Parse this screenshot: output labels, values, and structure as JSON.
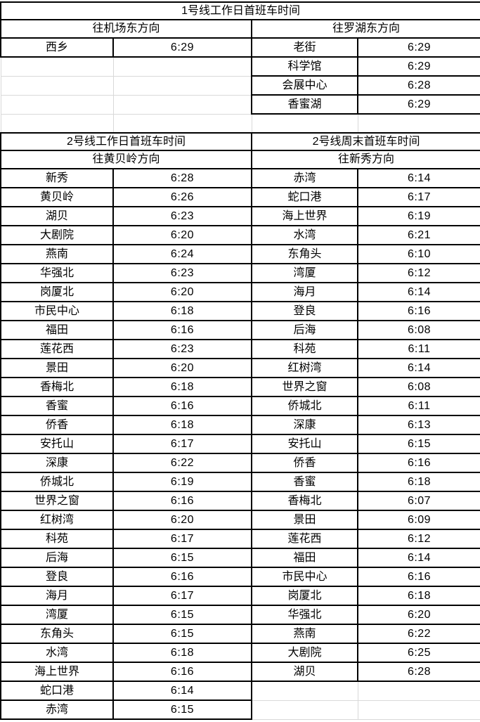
{
  "colors": {
    "background": "#ffffff",
    "table_border": "#000000",
    "gridline": "#d9d9d9",
    "text": "#000000"
  },
  "table1": {
    "title": "1号线工作日首班车时间",
    "left": {
      "direction": "往机场东方向",
      "rows": [
        {
          "station": "西乡",
          "time": "6:29"
        }
      ]
    },
    "right": {
      "direction": "往罗湖东方向",
      "rows": [
        {
          "station": "老街",
          "time": "6:29"
        },
        {
          "station": "科学馆",
          "time": "6:29"
        },
        {
          "station": "会展中心",
          "time": "6:28"
        },
        {
          "station": "香蜜湖",
          "time": "6:29"
        }
      ]
    }
  },
  "table2": {
    "left": {
      "title": "2号线工作日首班车时间",
      "direction": "往黄贝岭方向",
      "rows": [
        {
          "station": "新秀",
          "time": "6:28"
        },
        {
          "station": "黄贝岭",
          "time": "6:26"
        },
        {
          "station": "湖贝",
          "time": "6:23"
        },
        {
          "station": "大剧院",
          "time": "6:20"
        },
        {
          "station": "燕南",
          "time": "6:24"
        },
        {
          "station": "华强北",
          "time": "6:23"
        },
        {
          "station": "岗厦北",
          "time": "6:20"
        },
        {
          "station": "市民中心",
          "time": "6:18"
        },
        {
          "station": "福田",
          "time": "6:16"
        },
        {
          "station": "莲花西",
          "time": "6:23"
        },
        {
          "station": "景田",
          "time": "6:20"
        },
        {
          "station": "香梅北",
          "time": "6:18"
        },
        {
          "station": "香蜜",
          "time": "6:16"
        },
        {
          "station": "侨香",
          "time": "6:18"
        },
        {
          "station": "安托山",
          "time": "6:17"
        },
        {
          "station": "深康",
          "time": "6:22"
        },
        {
          "station": "侨城北",
          "time": "6:19"
        },
        {
          "station": "世界之窗",
          "time": "6:16"
        },
        {
          "station": "红树湾",
          "time": "6:20"
        },
        {
          "station": "科苑",
          "time": "6:17"
        },
        {
          "station": "后海",
          "time": "6:15"
        },
        {
          "station": "登良",
          "time": "6:16"
        },
        {
          "station": "海月",
          "time": "6:17"
        },
        {
          "station": "湾厦",
          "time": "6:15"
        },
        {
          "station": "东角头",
          "time": "6:15"
        },
        {
          "station": "水湾",
          "time": "6:18"
        },
        {
          "station": "海上世界",
          "time": "6:16"
        },
        {
          "station": "蛇口港",
          "time": "6:14"
        },
        {
          "station": "赤湾",
          "time": "6:15"
        }
      ]
    },
    "right": {
      "title": "2号线周末首班车时间",
      "direction": "往新秀方向",
      "rows": [
        {
          "station": "赤湾",
          "time": "6:14"
        },
        {
          "station": "蛇口港",
          "time": "6:17"
        },
        {
          "station": "海上世界",
          "time": "6:19"
        },
        {
          "station": "水湾",
          "time": "6:21"
        },
        {
          "station": "东角头",
          "time": "6:10"
        },
        {
          "station": "湾厦",
          "time": "6:12"
        },
        {
          "station": "海月",
          "time": "6:14"
        },
        {
          "station": "登良",
          "time": "6:16"
        },
        {
          "station": "后海",
          "time": "6:08"
        },
        {
          "station": "科苑",
          "time": "6:11"
        },
        {
          "station": "红树湾",
          "time": "6:14"
        },
        {
          "station": "世界之窗",
          "time": "6:08"
        },
        {
          "station": "侨城北",
          "time": "6:11"
        },
        {
          "station": "深康",
          "time": "6:13"
        },
        {
          "station": "安托山",
          "time": "6:15"
        },
        {
          "station": "侨香",
          "time": "6:16"
        },
        {
          "station": "香蜜",
          "time": "6:18"
        },
        {
          "station": "香梅北",
          "time": "6:07"
        },
        {
          "station": "景田",
          "time": "6:09"
        },
        {
          "station": "莲花西",
          "time": "6:12"
        },
        {
          "station": "福田",
          "time": "6:14"
        },
        {
          "station": "市民中心",
          "time": "6:16"
        },
        {
          "station": "岗厦北",
          "time": "6:18"
        },
        {
          "station": "华强北",
          "time": "6:20"
        },
        {
          "station": "燕南",
          "time": "6:22"
        },
        {
          "station": "大剧院",
          "time": "6:25"
        },
        {
          "station": "湖贝",
          "time": "6:28"
        }
      ]
    }
  }
}
